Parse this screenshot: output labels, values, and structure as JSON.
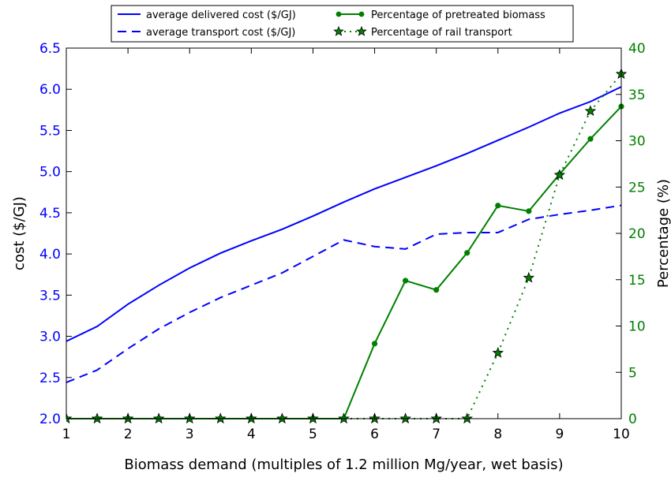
{
  "chart_data": {
    "type": "line",
    "title": "",
    "xlabel": "Biomass demand (multiples of 1.2 million Mg/year, wet basis)",
    "ylabel_left": "cost ($/GJ)",
    "ylabel_right": "Percentage (%)",
    "xlim": [
      1,
      10
    ],
    "ylim_left": [
      2.0,
      6.5
    ],
    "ylim_right": [
      0,
      40
    ],
    "x_ticks": [
      "1",
      "2",
      "3",
      "4",
      "5",
      "6",
      "7",
      "8",
      "9",
      "10"
    ],
    "y_left_ticks": [
      "2.0",
      "2.5",
      "3.0",
      "3.5",
      "4.0",
      "4.5",
      "5.0",
      "5.5",
      "6.0",
      "6.5"
    ],
    "y_right_ticks": [
      "0",
      "5",
      "10",
      "15",
      "20",
      "25",
      "30",
      "35",
      "40"
    ],
    "grid": false,
    "legend_position": "top-center",
    "colors": {
      "blue": "#0000ff",
      "green": "#008000",
      "axis": "#000000"
    },
    "series": [
      {
        "name": "average delivered cost ($/GJ)",
        "axis": "left",
        "style": "solid",
        "color": "#0000ff",
        "x": [
          1,
          1.5,
          2,
          2.5,
          3,
          3.5,
          4,
          4.5,
          5,
          5.5,
          6,
          6.5,
          7,
          7.5,
          8,
          8.5,
          9,
          9.5,
          10
        ],
        "y": [
          2.94,
          3.12,
          3.39,
          3.62,
          3.83,
          4.01,
          4.16,
          4.3,
          4.46,
          4.63,
          4.79,
          4.93,
          5.07,
          5.22,
          5.38,
          5.54,
          5.71,
          5.85,
          6.03
        ]
      },
      {
        "name": "average transport cost ($/GJ)",
        "axis": "left",
        "style": "dashed",
        "color": "#0000ff",
        "x": [
          1,
          1.5,
          2,
          2.5,
          3,
          3.5,
          4,
          4.5,
          5,
          5.5,
          6,
          6.5,
          7,
          7.5,
          8,
          8.5,
          9,
          9.5,
          10
        ],
        "y": [
          2.44,
          2.59,
          2.85,
          3.09,
          3.29,
          3.47,
          3.62,
          3.77,
          3.97,
          4.17,
          4.09,
          4.06,
          4.24,
          4.26,
          4.26,
          4.42,
          4.48,
          4.53,
          4.59
        ]
      },
      {
        "name": "Percentage of pretreated biomass",
        "axis": "right",
        "style": "solid-dots",
        "color": "#008000",
        "x": [
          1,
          1.5,
          2,
          2.5,
          3,
          3.5,
          4,
          4.5,
          5,
          5.5,
          6,
          6.5,
          7,
          7.5,
          8,
          8.5,
          9,
          9.5,
          10
        ],
        "y": [
          0,
          0,
          0,
          0,
          0,
          0,
          0,
          0,
          0,
          0,
          8.1,
          14.9,
          13.9,
          17.9,
          23.0,
          22.4,
          26.4,
          30.2,
          33.7
        ]
      },
      {
        "name": "Percentage of rail transport",
        "axis": "right",
        "style": "dotted-stars",
        "color": "#008000",
        "x": [
          1,
          1.5,
          2,
          2.5,
          3,
          3.5,
          4,
          4.5,
          5,
          5.5,
          6,
          6.5,
          7,
          7.5,
          8,
          8.5,
          9,
          9.5,
          10
        ],
        "y": [
          0,
          0,
          0,
          0,
          0,
          0,
          0,
          0,
          0,
          0,
          0,
          0,
          0,
          0,
          7.1,
          15.2,
          26.3,
          33.2,
          37.2
        ]
      }
    ]
  }
}
